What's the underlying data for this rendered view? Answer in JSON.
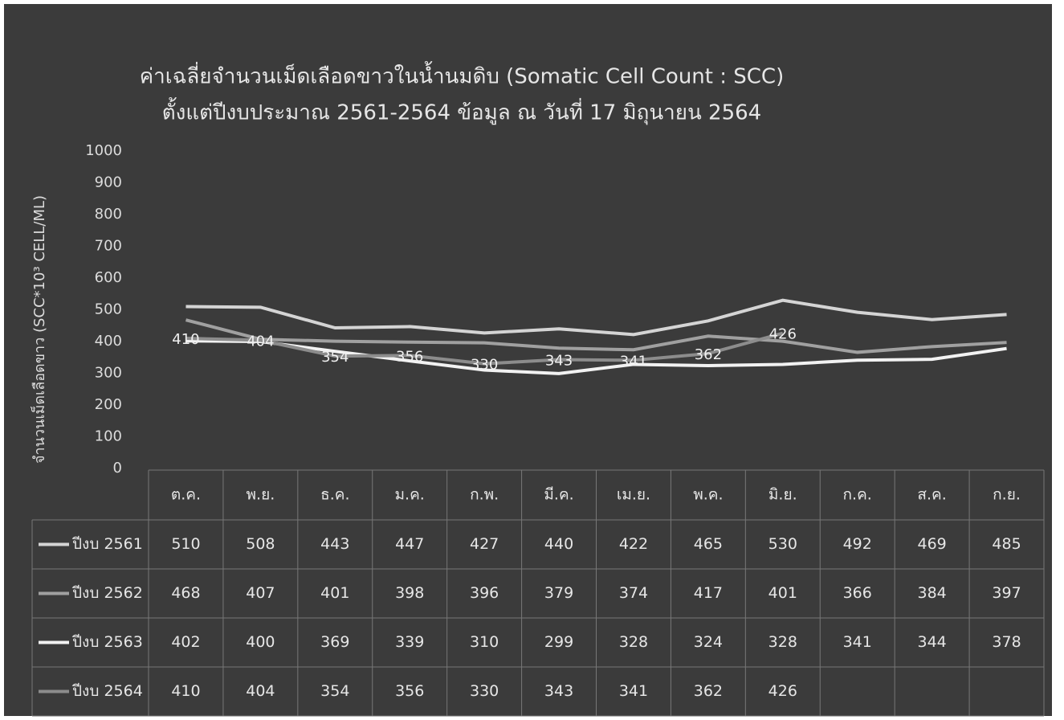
{
  "chart_data": {
    "type": "line",
    "title": "ค่าเฉลี่ยจำนวนเม็ดเลือดขาวในน้ำนมดิบ (Somatic Cell Count : SCC)",
    "subtitle": "ตั้งแต่ปีงบประมาณ 2561-2564 ข้อมูล ณ วันที่ 17 มิถุนายน 2564",
    "y_label": "จำนวนเม็ดเลือดขาว (SCC*10³ CELL/ML)",
    "categories": [
      "ต.ค.",
      "พ.ย.",
      "ธ.ค.",
      "ม.ค.",
      "ก.พ.",
      "มี.ค.",
      "เม.ย.",
      "พ.ค.",
      "มิ.ย.",
      "ก.ค.",
      "ส.ค.",
      "ก.ย."
    ],
    "series": [
      {
        "name": "ปีงบ 2561",
        "color": "#d4d4d4",
        "values": [
          510,
          508,
          443,
          447,
          427,
          440,
          422,
          465,
          530,
          492,
          469,
          485
        ]
      },
      {
        "name": "ปีงบ 2562",
        "color": "#a0a0a0",
        "values": [
          468,
          407,
          401,
          398,
          396,
          379,
          374,
          417,
          401,
          366,
          384,
          397
        ]
      },
      {
        "name": "ปีงบ 2563",
        "color": "#f2f2f2",
        "values": [
          402,
          400,
          369,
          339,
          310,
          299,
          328,
          324,
          328,
          341,
          344,
          378
        ]
      },
      {
        "name": "ปีงบ 2564",
        "color": "#8c8c8c",
        "values": [
          410,
          404,
          354,
          356,
          330,
          343,
          341,
          362,
          426,
          null,
          null,
          null
        ],
        "data_labels": true
      }
    ],
    "ylim": [
      0,
      1000
    ],
    "yticks": [
      0,
      100,
      200,
      300,
      400,
      500,
      600,
      700,
      800,
      900,
      1000
    ],
    "grid": false
  }
}
